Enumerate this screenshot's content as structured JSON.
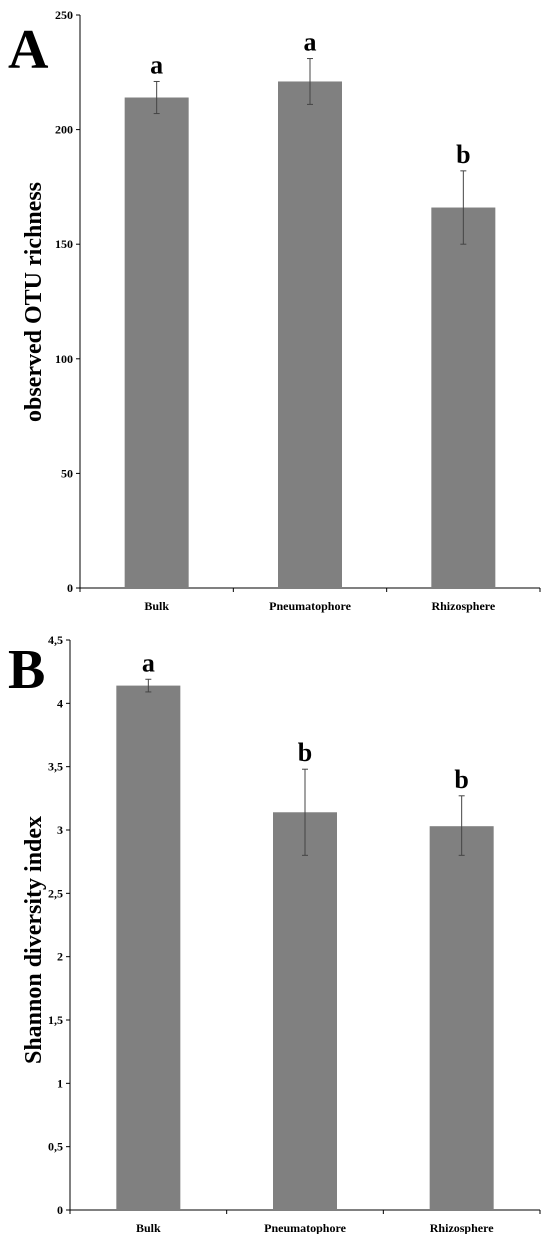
{
  "chart_data": [
    {
      "type": "bar",
      "panel_label": "A",
      "ylabel": "observed OTU richness",
      "categories": [
        "Bulk",
        "Pneumatophore",
        "Rhizosphere"
      ],
      "values": [
        214,
        221,
        166
      ],
      "error_low": [
        207,
        211,
        150
      ],
      "error_high": [
        221,
        231,
        182
      ],
      "significance": [
        "a",
        "a",
        "b"
      ],
      "ylim": [
        0,
        250
      ],
      "yticks": [
        0,
        50,
        100,
        150,
        200,
        250
      ],
      "ytick_labels": [
        "0",
        "50",
        "100",
        "150",
        "200",
        "250"
      ],
      "bar_color": "#808080"
    },
    {
      "type": "bar",
      "panel_label": "B",
      "ylabel": "Shannon diversity index",
      "categories": [
        "Bulk",
        "Pneumatophore",
        "Rhizosphere"
      ],
      "values": [
        4.14,
        3.14,
        3.03
      ],
      "error_low": [
        4.09,
        2.8,
        2.8
      ],
      "error_high": [
        4.19,
        3.48,
        3.27
      ],
      "significance": [
        "a",
        "b",
        "b"
      ],
      "ylim": [
        0,
        4.5
      ],
      "yticks": [
        0,
        0.5,
        1,
        1.5,
        2,
        2.5,
        3,
        3.5,
        4,
        4.5
      ],
      "ytick_labels": [
        "0",
        "0,5",
        "1",
        "1,5",
        "2",
        "2,5",
        "3",
        "3,5",
        "4",
        "4,5"
      ],
      "bar_color": "#808080"
    }
  ]
}
